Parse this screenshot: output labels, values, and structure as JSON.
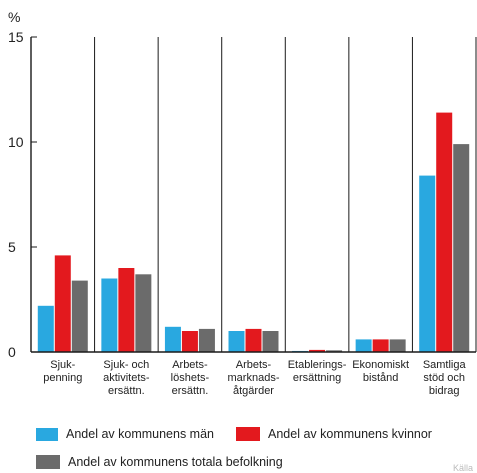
{
  "chart_data": {
    "type": "bar",
    "title": "",
    "ylabel": "%",
    "xlabel": "",
    "ylim": [
      0,
      15
    ],
    "yticks": [
      0,
      5,
      10,
      15
    ],
    "grid": "vertical",
    "categories": [
      [
        "Sjuk-",
        "penning"
      ],
      [
        "Sjuk- och",
        "aktivitets-",
        "ersättn."
      ],
      [
        "Arbets-",
        "löshets-",
        "ersättn."
      ],
      [
        "Arbets-",
        "marknads-",
        "åtgärder"
      ],
      [
        "Etablerings-",
        "ersättning"
      ],
      [
        "Ekonomiskt",
        "bistånd"
      ],
      [
        "Samtliga",
        "stöd och",
        "bidrag"
      ]
    ],
    "series": [
      {
        "name": "Andel av kommunens män",
        "color": "#29a8e0",
        "values": [
          2.2,
          3.5,
          1.2,
          1.0,
          0.05,
          0.6,
          8.4
        ]
      },
      {
        "name": "Andel av kommunens kvinnor",
        "color": "#e3191e",
        "values": [
          4.6,
          4.0,
          1.0,
          1.1,
          0.1,
          0.6,
          11.4
        ]
      },
      {
        "name": "Andel av kommunens totala befolkning",
        "color": "#6b6b6b",
        "values": [
          3.4,
          3.7,
          1.1,
          1.0,
          0.08,
          0.6,
          9.9
        ]
      }
    ],
    "legend_placement": "bottom"
  },
  "source_label": "Källa"
}
